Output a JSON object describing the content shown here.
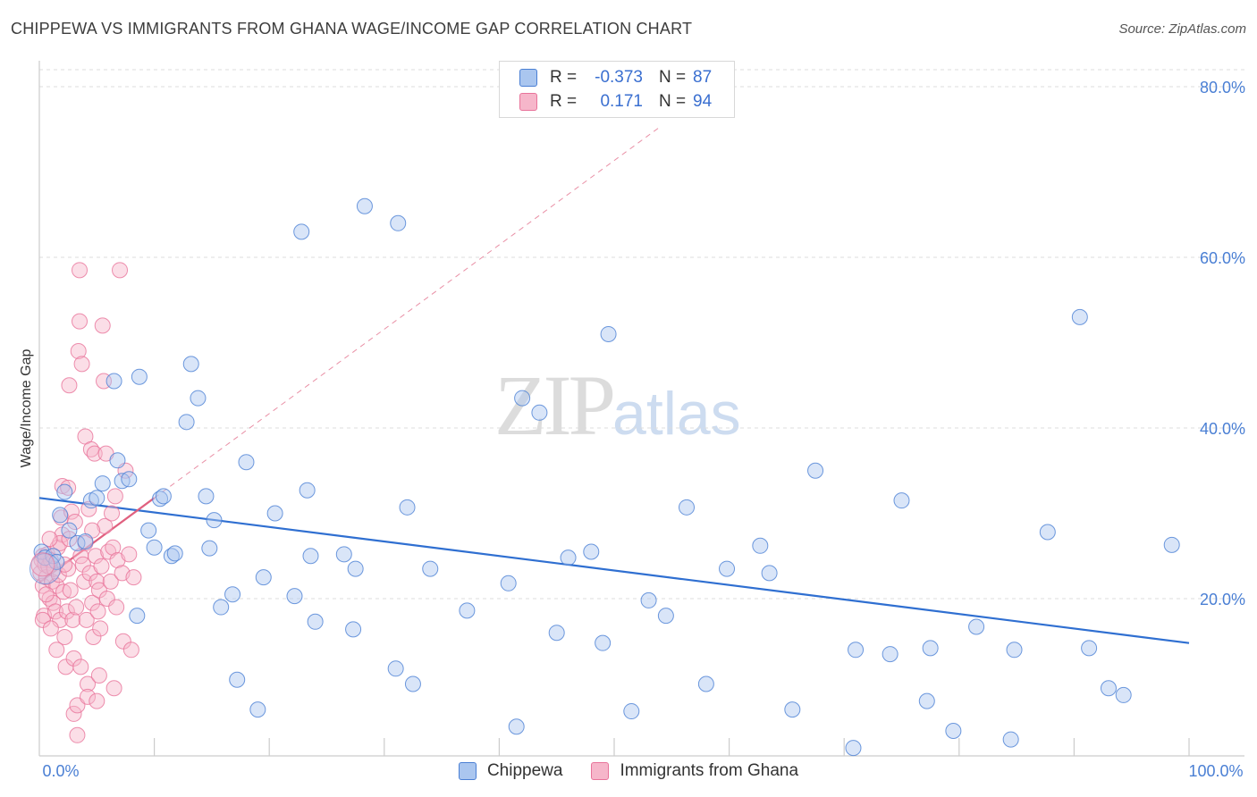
{
  "title": "CHIPPEWA VS IMMIGRANTS FROM GHANA WAGE/INCOME GAP CORRELATION CHART",
  "source": "Source: ZipAtlas.com",
  "watermark": {
    "zip": "ZIP",
    "atlas": "atlas"
  },
  "colors": {
    "blue": "#4a7fd4",
    "blue_fill": "#aac6ef",
    "blue_line": "#2f6fd1",
    "pink": "#e8739a",
    "pink_fill": "#f6b6ca",
    "pink_line": "#e0607f"
  },
  "legend": {
    "rows": [
      {
        "r_label": "R =",
        "r_value": "-0.373",
        "n_label": "N =",
        "n_value": "87"
      },
      {
        "r_label": "R =",
        "r_value": "0.171",
        "n_label": "N =",
        "n_value": "94"
      }
    ]
  },
  "bottom_legend": {
    "series1": "Chippewa",
    "series2": "Immigrants from Ghana"
  },
  "chart_data": {
    "type": "scatter",
    "title": "CHIPPEWA VS IMMIGRANTS FROM GHANA WAGE/INCOME GAP CORRELATION CHART",
    "xlabel": "",
    "ylabel": "Wage/Income Gap",
    "xlim": [
      0,
      100
    ],
    "ylim": [
      0,
      85
    ],
    "x_tick_labels": [
      "0.0%",
      "100.0%"
    ],
    "y_ticks": [
      20,
      40,
      60,
      80
    ],
    "y_tick_labels": [
      "20.0%",
      "40.0%",
      "60.0%",
      "80.0%"
    ],
    "series": [
      {
        "name": "Chippewa",
        "r": -0.373,
        "n": 87,
        "trend": {
          "x": [
            0,
            100
          ],
          "y": [
            31.8,
            14.8
          ]
        },
        "points": [
          [
            0.2,
            25.5
          ],
          [
            0.5,
            24.8
          ],
          [
            1.2,
            25.0
          ],
          [
            1.5,
            24.3
          ],
          [
            1.8,
            29.8
          ],
          [
            2.2,
            32.5
          ],
          [
            2.6,
            28.0
          ],
          [
            3.3,
            26.5
          ],
          [
            4.0,
            26.7
          ],
          [
            4.5,
            31.5
          ],
          [
            5.0,
            31.8
          ],
          [
            5.5,
            33.5
          ],
          [
            6.5,
            45.5
          ],
          [
            6.8,
            36.2
          ],
          [
            7.2,
            33.8
          ],
          [
            7.8,
            34.0
          ],
          [
            8.5,
            18.0
          ],
          [
            8.7,
            46.0
          ],
          [
            9.5,
            28.0
          ],
          [
            10.0,
            26.0
          ],
          [
            10.5,
            31.7
          ],
          [
            10.8,
            32.0
          ],
          [
            11.5,
            25.0
          ],
          [
            11.8,
            25.3
          ],
          [
            12.8,
            40.7
          ],
          [
            13.2,
            47.5
          ],
          [
            13.8,
            43.5
          ],
          [
            14.5,
            32.0
          ],
          [
            14.8,
            25.9
          ],
          [
            15.2,
            29.2
          ],
          [
            15.8,
            19.0
          ],
          [
            16.8,
            20.5
          ],
          [
            17.2,
            10.5
          ],
          [
            18.0,
            36.0
          ],
          [
            19.0,
            7.0
          ],
          [
            19.5,
            22.5
          ],
          [
            20.5,
            30.0
          ],
          [
            22.2,
            20.3
          ],
          [
            22.8,
            63.0
          ],
          [
            23.3,
            32.7
          ],
          [
            23.6,
            25.0
          ],
          [
            24.0,
            17.3
          ],
          [
            26.5,
            25.2
          ],
          [
            27.3,
            16.4
          ],
          [
            27.5,
            23.5
          ],
          [
            28.3,
            66.0
          ],
          [
            31.0,
            11.8
          ],
          [
            31.2,
            64.0
          ],
          [
            32.0,
            30.7
          ],
          [
            32.5,
            10.0
          ],
          [
            34.0,
            23.5
          ],
          [
            37.2,
            18.6
          ],
          [
            40.8,
            21.8
          ],
          [
            41.5,
            5.0
          ],
          [
            42.0,
            43.5
          ],
          [
            43.5,
            41.8
          ],
          [
            45.0,
            16.0
          ],
          [
            46.0,
            24.8
          ],
          [
            48.0,
            25.5
          ],
          [
            49.0,
            14.8
          ],
          [
            49.5,
            51.0
          ],
          [
            51.5,
            6.8
          ],
          [
            53.0,
            19.8
          ],
          [
            54.5,
            18.0
          ],
          [
            56.3,
            30.7
          ],
          [
            58.0,
            10.0
          ],
          [
            59.8,
            23.5
          ],
          [
            62.7,
            26.2
          ],
          [
            63.5,
            23.0
          ],
          [
            65.5,
            7.0
          ],
          [
            67.5,
            35.0
          ],
          [
            70.8,
            2.5
          ],
          [
            71.0,
            14.0
          ],
          [
            74.0,
            13.5
          ],
          [
            75.0,
            31.5
          ],
          [
            77.2,
            8.0
          ],
          [
            77.5,
            14.2
          ],
          [
            79.5,
            4.5
          ],
          [
            81.5,
            16.7
          ],
          [
            84.5,
            3.5
          ],
          [
            84.8,
            14.0
          ],
          [
            87.7,
            27.8
          ],
          [
            90.5,
            53.0
          ],
          [
            91.3,
            14.2
          ],
          [
            93.0,
            9.5
          ],
          [
            94.3,
            8.7
          ],
          [
            98.5,
            26.3
          ]
        ]
      },
      {
        "name": "Immigrants from Ghana",
        "r": 0.171,
        "n": 94,
        "trend": {
          "x": [
            0,
            10
          ],
          "y": [
            21.9,
            31.8
          ]
        },
        "trend_extended": {
          "x": [
            10,
            54
          ],
          "y": [
            31.8,
            75.3
          ]
        },
        "points": [
          [
            0.1,
            23.0
          ],
          [
            0.2,
            24.5
          ],
          [
            0.3,
            25.0
          ],
          [
            0.3,
            21.5
          ],
          [
            0.4,
            18.0
          ],
          [
            0.5,
            24.0
          ],
          [
            0.6,
            22.5
          ],
          [
            0.7,
            25.2
          ],
          [
            0.8,
            23.8
          ],
          [
            0.9,
            20.0
          ],
          [
            1.0,
            24.5
          ],
          [
            1.1,
            22.0
          ],
          [
            1.2,
            19.5
          ],
          [
            1.3,
            23.5
          ],
          [
            1.4,
            18.5
          ],
          [
            1.5,
            21.5
          ],
          [
            1.6,
            26.0
          ],
          [
            1.7,
            22.8
          ],
          [
            1.8,
            17.5
          ],
          [
            1.9,
            29.5
          ],
          [
            2.0,
            33.2
          ],
          [
            2.0,
            27.5
          ],
          [
            2.1,
            20.8
          ],
          [
            2.2,
            15.5
          ],
          [
            2.3,
            12.0
          ],
          [
            2.4,
            18.5
          ],
          [
            2.5,
            33.0
          ],
          [
            2.5,
            23.5
          ],
          [
            2.6,
            45.0
          ],
          [
            2.7,
            21.0
          ],
          [
            2.8,
            30.2
          ],
          [
            2.9,
            17.5
          ],
          [
            3.0,
            6.5
          ],
          [
            3.1,
            29.0
          ],
          [
            3.2,
            19.0
          ],
          [
            3.3,
            4.0
          ],
          [
            3.3,
            7.5
          ],
          [
            3.4,
            49.0
          ],
          [
            3.5,
            58.5
          ],
          [
            3.5,
            52.5
          ],
          [
            3.6,
            25.0
          ],
          [
            3.7,
            47.5
          ],
          [
            3.8,
            24.0
          ],
          [
            3.9,
            22.0
          ],
          [
            4.0,
            39.0
          ],
          [
            4.1,
            17.5
          ],
          [
            4.2,
            10.0
          ],
          [
            4.2,
            8.5
          ],
          [
            4.3,
            30.5
          ],
          [
            4.4,
            23.0
          ],
          [
            4.5,
            37.5
          ],
          [
            4.6,
            19.5
          ],
          [
            4.7,
            15.5
          ],
          [
            4.8,
            37.0
          ],
          [
            4.9,
            25.0
          ],
          [
            5.0,
            8.0
          ],
          [
            5.0,
            22.0
          ],
          [
            5.1,
            18.5
          ],
          [
            5.2,
            21.0
          ],
          [
            5.3,
            16.5
          ],
          [
            5.4,
            23.8
          ],
          [
            5.5,
            52.0
          ],
          [
            5.6,
            45.5
          ],
          [
            5.7,
            28.5
          ],
          [
            5.8,
            37.0
          ],
          [
            5.9,
            20.0
          ],
          [
            6.0,
            25.5
          ],
          [
            6.2,
            22.0
          ],
          [
            6.3,
            30.0
          ],
          [
            6.4,
            26.0
          ],
          [
            6.5,
            9.5
          ],
          [
            6.6,
            32.0
          ],
          [
            6.7,
            19.0
          ],
          [
            6.8,
            24.5
          ],
          [
            7.0,
            58.5
          ],
          [
            7.2,
            23.0
          ],
          [
            7.3,
            15.0
          ],
          [
            7.5,
            35.0
          ],
          [
            7.8,
            25.2
          ],
          [
            8.0,
            14.0
          ],
          [
            8.2,
            22.5
          ],
          [
            0.3,
            17.5
          ],
          [
            0.6,
            20.5
          ],
          [
            1.0,
            16.5
          ],
          [
            1.5,
            14.0
          ],
          [
            1.8,
            26.5
          ],
          [
            2.2,
            24.0
          ],
          [
            2.6,
            27.0
          ],
          [
            3.0,
            13.0
          ],
          [
            3.6,
            12.0
          ],
          [
            4.0,
            26.5
          ],
          [
            4.6,
            28.0
          ],
          [
            5.2,
            11.0
          ],
          [
            0.9,
            27.0
          ]
        ]
      }
    ]
  }
}
